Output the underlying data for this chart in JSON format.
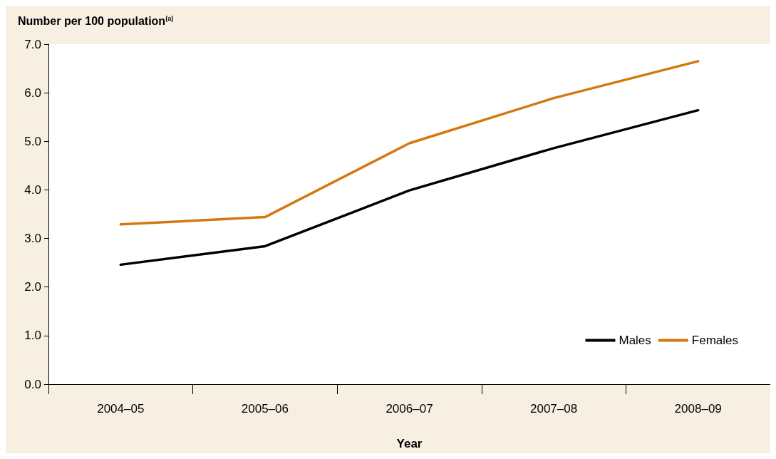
{
  "chart_data": {
    "type": "line",
    "ylabel": "Number per 100 population$^{(a)}$",
    "xlabel": "Year",
    "categories": [
      "2004–05",
      "2005–06",
      "2006–07",
      "2007–08",
      "2008–09"
    ],
    "series": [
      {
        "name": "Males",
        "color": "#000000",
        "values": [
          2.46,
          2.84,
          3.99,
          4.86,
          5.64
        ]
      },
      {
        "name": "Females",
        "color": "#d4780f",
        "values": [
          3.29,
          3.44,
          4.96,
          5.89,
          6.65
        ]
      }
    ],
    "ylim": [
      0,
      7
    ],
    "yticks": [
      {
        "value": 0,
        "label": "0.0"
      },
      {
        "value": 1,
        "label": "1.0"
      },
      {
        "value": 2,
        "label": "2.0"
      },
      {
        "value": 3,
        "label": "3.0"
      },
      {
        "value": 4,
        "label": "4.0"
      },
      {
        "value": 5,
        "label": "5.0"
      },
      {
        "value": 6,
        "label": "6.0"
      },
      {
        "value": 7,
        "label": "7.0"
      }
    ],
    "grid": false,
    "legend": "bottom right",
    "marker": "none",
    "line_style": "solid"
  }
}
